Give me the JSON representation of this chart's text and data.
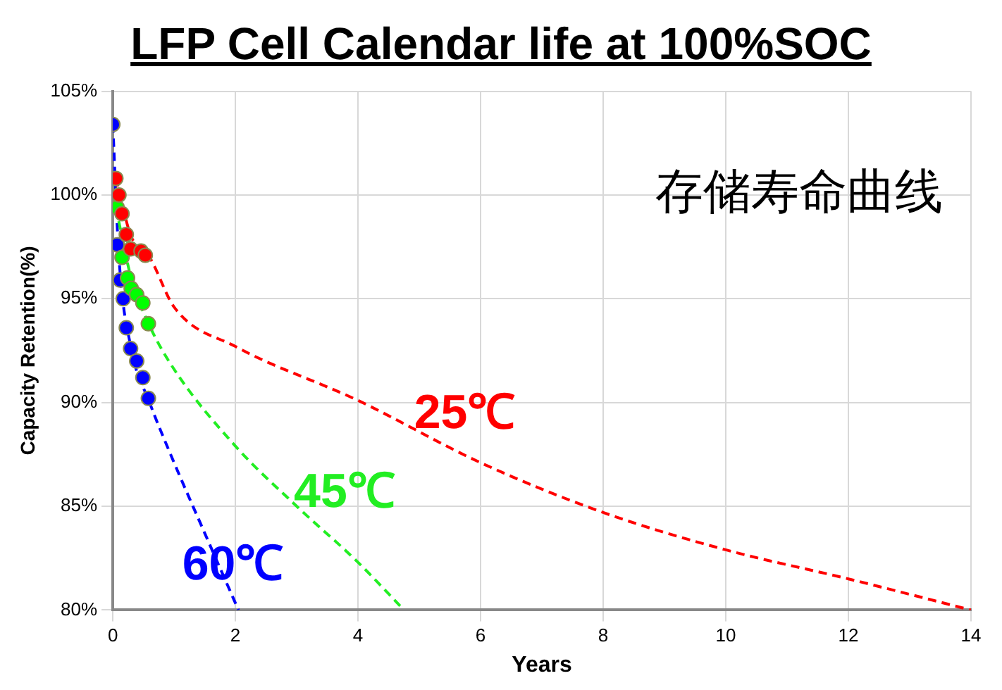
{
  "chart_data": {
    "type": "scatter",
    "title": "LFP Cell Calendar life at 100%SOC",
    "xlabel": "Years",
    "ylabel": "Capacity Retention(%)",
    "xlim": [
      0,
      14
    ],
    "xticks": [
      0,
      2,
      4,
      6,
      8,
      10,
      12,
      14
    ],
    "ylim": [
      80,
      105
    ],
    "yticks": [
      {
        "value": 80,
        "label": "80%"
      },
      {
        "value": 85,
        "label": "85%"
      },
      {
        "value": 90,
        "label": "90%"
      },
      {
        "value": 95,
        "label": "95%"
      },
      {
        "value": 100,
        "label": "100%"
      },
      {
        "value": 105,
        "label": "105%"
      }
    ],
    "grid": true,
    "legend": false,
    "marker": "circle",
    "series": [
      {
        "type": "line",
        "color": "#ff0000",
        "line_style": "dashed",
        "marker": "none",
        "x": [
          0.05,
          0.3,
          0.6,
          1,
          2,
          4,
          6,
          8,
          10,
          12,
          14
        ],
        "values": [
          100.8,
          98,
          97,
          94.6,
          92.7,
          90.1,
          87.1,
          84.7,
          82.9,
          81.5,
          80
        ]
      },
      {
        "type": "line",
        "color": "#22ee22",
        "line_style": "dashed",
        "marker": "none",
        "x": [
          0.05,
          0.3,
          0.6,
          1,
          2,
          3,
          4,
          4.75
        ],
        "values": [
          99.4,
          96,
          93.7,
          91.6,
          87.9,
          85,
          82.3,
          80
        ]
      },
      {
        "type": "line",
        "color": "#0000ff",
        "line_style": "dashed",
        "marker": "none",
        "x": [
          0,
          0.1,
          0.3,
          0.6,
          1,
          1.5,
          2.05
        ],
        "values": [
          103.4,
          97,
          92.6,
          90,
          87.1,
          83.7,
          80
        ]
      },
      {
        "color": "#ff0000",
        "x": [
          0.05,
          0.1,
          0.15,
          0.22,
          0.29,
          0.46,
          0.53
        ],
        "values": [
          100.8,
          100,
          99.1,
          98.1,
          97.4,
          97.3,
          97.1
        ]
      },
      {
        "color": "#00ff00",
        "x": [
          0.07,
          0.15,
          0.24,
          0.3,
          0.39,
          0.49,
          0.58
        ],
        "values": [
          99.4,
          97,
          96,
          95.5,
          95.2,
          94.8,
          93.8
        ]
      },
      {
        "color": "#0000ff",
        "x": [
          0,
          0.07,
          0.12,
          0.17,
          0.22,
          0.29,
          0.39,
          0.49,
          0.58
        ],
        "values": [
          103.4,
          97.6,
          95.9,
          95,
          93.6,
          92.6,
          92,
          91.2,
          90.2
        ]
      }
    ],
    "annotations": [
      "25℃",
      "45℃",
      "60℃",
      "存储寿命曲线"
    ]
  }
}
